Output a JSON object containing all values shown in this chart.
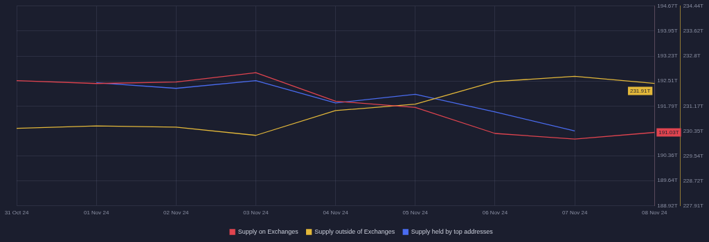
{
  "chart_data": {
    "type": "line",
    "categories": [
      "31 Oct 24",
      "01 Nov 24",
      "02 Nov 24",
      "03 Nov 24",
      "04 Nov 24",
      "05 Nov 24",
      "06 Nov 24",
      "07 Nov 24",
      "08 Nov 24"
    ],
    "series": [
      {
        "name": "Supply on Exchanges",
        "color": "#e0444f",
        "axis": "y",
        "values": [
          192.52,
          192.44,
          192.48,
          192.75,
          191.93,
          191.75,
          191.0,
          190.84,
          191.03
        ],
        "value_labels": [
          null,
          null,
          null,
          null,
          null,
          null,
          null,
          null,
          "191.03T"
        ]
      },
      {
        "name": "Supply outside of Exchanges",
        "color": "#e3b83a",
        "axis": "y2",
        "values": [
          230.44,
          230.52,
          230.48,
          230.21,
          231.02,
          231.23,
          231.97,
          232.14,
          231.91
        ],
        "value_labels": [
          null,
          null,
          null,
          null,
          null,
          null,
          null,
          null,
          "231.91T"
        ]
      },
      {
        "name": "Supply held by top addresses",
        "color": "#4a6cf0",
        "axis": "y",
        "values": [
          null,
          192.46,
          192.3,
          192.52,
          191.88,
          192.13,
          191.62,
          191.07,
          null
        ]
      }
    ],
    "ylim": [
      188.92,
      194.67
    ],
    "yticks": [
      {
        "value": 188.92,
        "label": "188.92T"
      },
      {
        "value": 189.64,
        "label": "189.64T"
      },
      {
        "value": 190.36,
        "label": "190.36T"
      },
      {
        "value": 191.79,
        "label": "191.79T"
      },
      {
        "value": 192.51,
        "label": "192.51T"
      },
      {
        "value": 193.23,
        "label": "193.23T"
      },
      {
        "value": 193.95,
        "label": "193.95T"
      },
      {
        "value": 194.67,
        "label": "194.67T"
      }
    ],
    "y2lim": [
      227.91,
      234.44
    ],
    "y2ticks": [
      {
        "value": 227.91,
        "label": "227.91T"
      },
      {
        "value": 228.72,
        "label": "228.72T"
      },
      {
        "value": 229.54,
        "label": "229.54T"
      },
      {
        "value": 230.35,
        "label": "230.35T"
      },
      {
        "value": 231.17,
        "label": "231.17T"
      },
      {
        "value": 232.8,
        "label": "232.8T"
      },
      {
        "value": 233.62,
        "label": "233.62T"
      },
      {
        "value": 234.44,
        "label": "234.44T"
      }
    ],
    "grid": true,
    "legend": "bottom",
    "marker": "none",
    "line_style": "solid"
  }
}
